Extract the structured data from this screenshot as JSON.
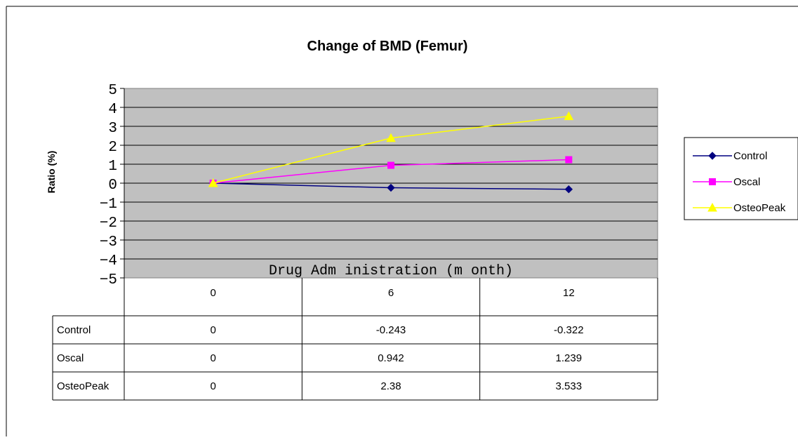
{
  "chart_data": {
    "type": "line",
    "title": "Change of BMD (Femur)",
    "ylabel": "Ratio (%)",
    "xlabel": "Drug Adm inistration (m onth)",
    "ylim": [
      -5,
      5
    ],
    "yticks": [
      "5",
      "4",
      "3",
      "2",
      "1",
      "0",
      "−1",
      "−2",
      "−3",
      "−4",
      "−5"
    ],
    "categories": [
      "0",
      "6",
      "12"
    ],
    "grid": true,
    "legend_position": "right",
    "series": [
      {
        "name": "Control",
        "values": [
          0,
          -0.243,
          -0.322
        ],
        "labels": [
          "0",
          "-0.243",
          "-0.322"
        ],
        "color": "#000080",
        "marker": "diamond"
      },
      {
        "name": "Oscal",
        "values": [
          0,
          0.942,
          1.239
        ],
        "labels": [
          "0",
          "0.942",
          "1.239"
        ],
        "color": "#ff00ff",
        "marker": "square"
      },
      {
        "name": "OsteoPeak",
        "values": [
          0,
          2.38,
          3.533
        ],
        "labels": [
          "0",
          "2.38",
          "3.533"
        ],
        "color": "#ffff00",
        "marker": "triangle"
      }
    ]
  },
  "colors": {
    "plot_background": "#c0c0c0",
    "gridline": "#000000"
  }
}
